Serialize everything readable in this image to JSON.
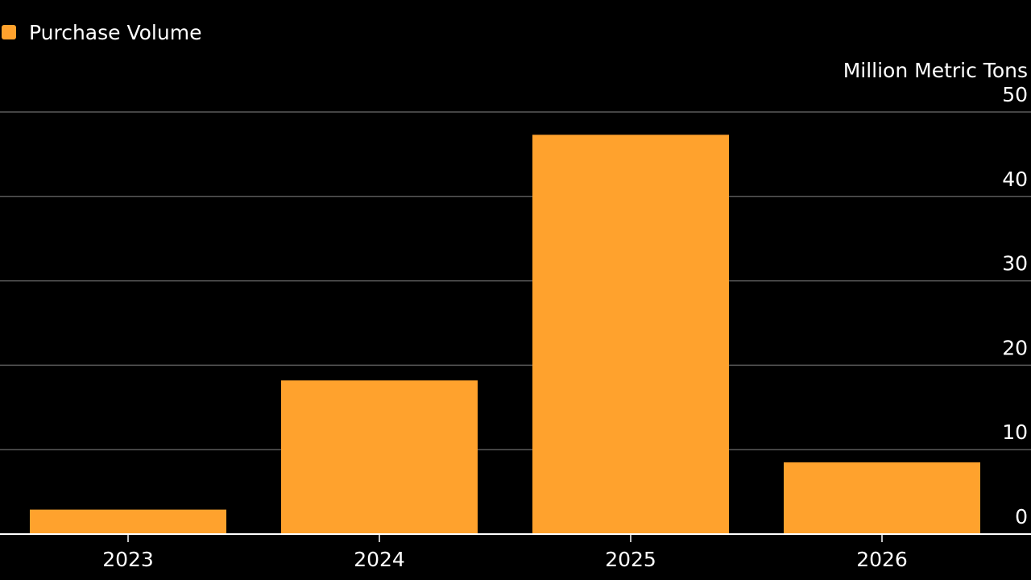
{
  "chart_data": {
    "type": "bar",
    "categories": [
      "2023",
      "2024",
      "2025",
      "2026"
    ],
    "series": [
      {
        "name": "Purchase Volume",
        "values": [
          2.9,
          18.2,
          47.3,
          8.5
        ],
        "color": "#FFA22D"
      }
    ],
    "ylabel": "Million Metric Tons",
    "ylim": [
      0,
      50
    ],
    "yticks": [
      0,
      10,
      20,
      30,
      40,
      50
    ],
    "y_axis_position": "right",
    "grid": true,
    "legend_position": "top-left"
  },
  "colors": {
    "background": "#000000",
    "bar": "#FFA22D",
    "grid": "#5a5a5a",
    "text": "#ffffff"
  }
}
